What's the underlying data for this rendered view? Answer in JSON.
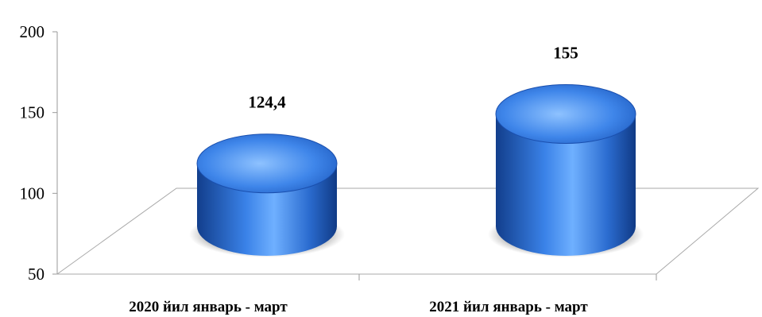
{
  "chart_data": {
    "type": "bar",
    "style": "3d-cylinder",
    "categories": [
      "2020 йил январь - март",
      "2021 йил январь - март"
    ],
    "values": [
      124.4,
      155
    ],
    "data_labels": [
      "124,4",
      "155"
    ],
    "ylim": [
      50,
      200
    ],
    "yticks": [
      "200",
      "150",
      "100",
      "50"
    ],
    "ytick_values": [
      200,
      150,
      100,
      50
    ],
    "grid": false,
    "legend": "none",
    "title": "",
    "xlabel": "",
    "ylabel": "",
    "colors": {
      "bar": "#2f6fd6",
      "bar_light": "#8ec2ff",
      "bar_dark": "#123e8c",
      "axis": "#9a9a9a",
      "shadow": "#5a5a5a"
    }
  }
}
